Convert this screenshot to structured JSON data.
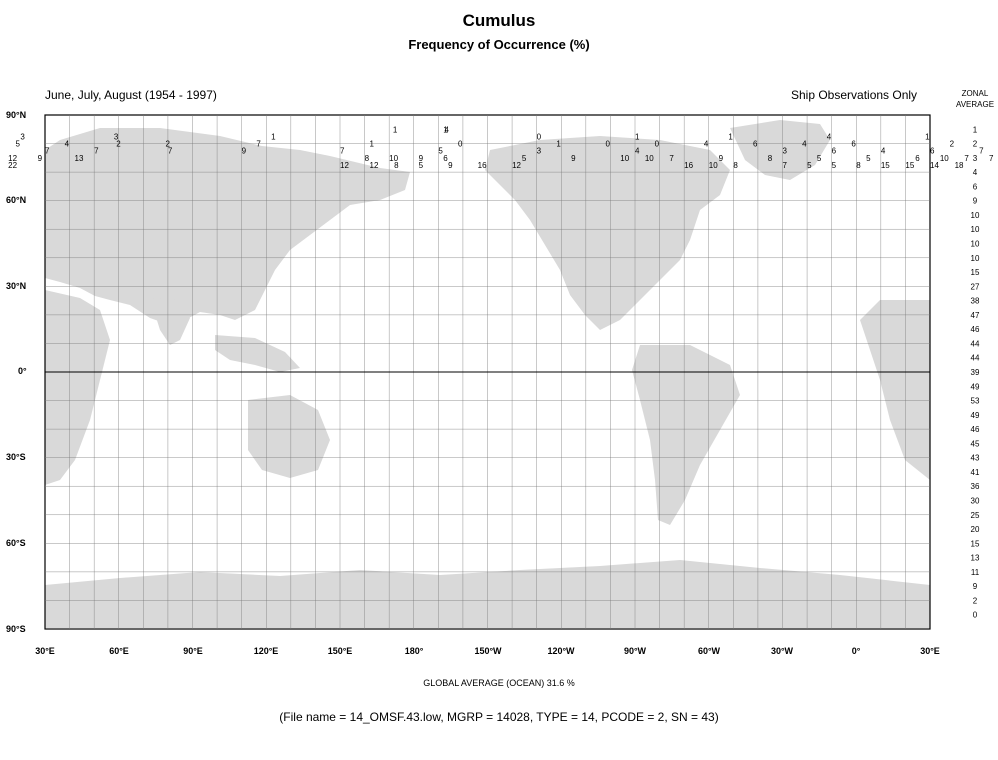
{
  "header": {
    "title": "Cumulus",
    "subtitle": "Frequency of Occurrence (%)",
    "period": "June, July, August (1954 - 1997)",
    "source": "Ship Observations Only",
    "zonal_label_1": "ZONAL",
    "zonal_label_2": "AVERAGE"
  },
  "latitude_labels": [
    "90°N",
    "60°N",
    "30°N",
    "0°",
    "30°S",
    "60°S",
    "90°S"
  ],
  "longitude_labels": [
    "30°E",
    "60°E",
    "90°E",
    "120°E",
    "150°E",
    "180°",
    "150°W",
    "120°W",
    "90°W",
    "60°W",
    "30°W",
    "0°",
    "30°E"
  ],
  "zonal_average": [
    1,
    2,
    3,
    4,
    6,
    9,
    10,
    10,
    10,
    10,
    15,
    27,
    38,
    47,
    46,
    44,
    44,
    39,
    49,
    53,
    49,
    46,
    45,
    43,
    41,
    36,
    30,
    25,
    20,
    15,
    13,
    11,
    9,
    2,
    0
  ],
  "rows": [
    {
      "lat": 85,
      "cells": [
        [
          -8.5,
          "1"
        ],
        [
          12,
          "1"
        ],
        [
          12.5,
          "4"
        ]
      ]
    },
    {
      "lat": 82.5,
      "cells": [
        [
          -160,
          "3"
        ],
        [
          -122,
          "3"
        ],
        [
          -58,
          "1"
        ],
        [
          50,
          "0"
        ],
        [
          90,
          "1"
        ],
        [
          128,
          "1"
        ],
        [
          168,
          "4"
        ],
        [
          208,
          "1"
        ],
        [
          248,
          "4"
        ]
      ]
    },
    {
      "lat": 80,
      "cells": [
        [
          -180,
          "6"
        ],
        [
          -162,
          "5"
        ],
        [
          -142,
          "4"
        ],
        [
          -121,
          "2"
        ],
        [
          -101,
          "2"
        ],
        [
          -64,
          "7"
        ],
        [
          -18,
          "1"
        ],
        [
          18,
          "0"
        ],
        [
          58,
          "1"
        ],
        [
          78,
          "0"
        ],
        [
          98,
          "0"
        ],
        [
          118,
          "4"
        ],
        [
          138,
          "6"
        ],
        [
          158,
          "4"
        ],
        [
          178,
          "6"
        ],
        [
          218,
          "2"
        ],
        [
          238,
          "6"
        ],
        [
          258,
          "6"
        ]
      ]
    },
    {
      "lat": 77.5,
      "cells": [
        [
          -180,
          "10"
        ],
        [
          -150,
          "7"
        ],
        [
          -130,
          "7"
        ],
        [
          -100,
          "7"
        ],
        [
          -70,
          "9"
        ],
        [
          -30,
          "7"
        ],
        [
          10,
          "5"
        ],
        [
          50,
          "3"
        ],
        [
          90,
          "4"
        ],
        [
          150,
          "3"
        ],
        [
          170,
          "6"
        ],
        [
          190,
          "4"
        ],
        [
          210,
          "6"
        ],
        [
          230,
          "7"
        ],
        [
          250,
          "4"
        ],
        [
          270,
          "9"
        ],
        [
          290,
          "10"
        ]
      ]
    },
    {
      "lat": 75,
      "cells": [
        [
          -178,
          "13"
        ],
        [
          -165,
          "12"
        ],
        [
          -153,
          "9"
        ],
        [
          -138,
          "13"
        ],
        [
          -20,
          "8"
        ],
        [
          -10,
          "10"
        ],
        [
          2,
          "9"
        ],
        [
          12,
          "6"
        ],
        [
          44,
          "5"
        ],
        [
          64,
          "9"
        ],
        [
          84,
          "10"
        ],
        [
          94,
          "10"
        ],
        [
          104,
          "7"
        ],
        [
          124,
          "9"
        ],
        [
          144,
          "8"
        ],
        [
          164,
          "5"
        ],
        [
          184,
          "5"
        ],
        [
          204,
          "6"
        ],
        [
          214,
          "10"
        ],
        [
          224,
          "7"
        ],
        [
          234,
          "7"
        ],
        [
          244,
          "4"
        ],
        [
          254,
          "10"
        ],
        [
          264,
          "15"
        ]
      ]
    },
    {
      "lat": 72.5,
      "cells": [
        [
          -178,
          "15"
        ],
        [
          -165,
          "22"
        ],
        [
          -30,
          "12"
        ],
        [
          -18,
          "12"
        ],
        [
          -8,
          "8"
        ],
        [
          2,
          "5"
        ],
        [
          14,
          "9"
        ],
        [
          26,
          "16"
        ],
        [
          40,
          "12"
        ],
        [
          110,
          "16"
        ],
        [
          120,
          "10"
        ],
        [
          130,
          "8"
        ],
        [
          150,
          "7"
        ],
        [
          160,
          "5"
        ],
        [
          170,
          "5"
        ],
        [
          180,
          "8"
        ],
        [
          190,
          "15"
        ],
        [
          200,
          "15"
        ],
        [
          210,
          "14"
        ],
        [
          220,
          "18"
        ]
      ]
    }
  ],
  "global_average": "GLOBAL AVERAGE (OCEAN)   31.6 %",
  "file_info": "(File name = 14_OMSF.43.low, MGRP = 14028, TYPE = 14, PCODE = 2, SN = 43)"
}
